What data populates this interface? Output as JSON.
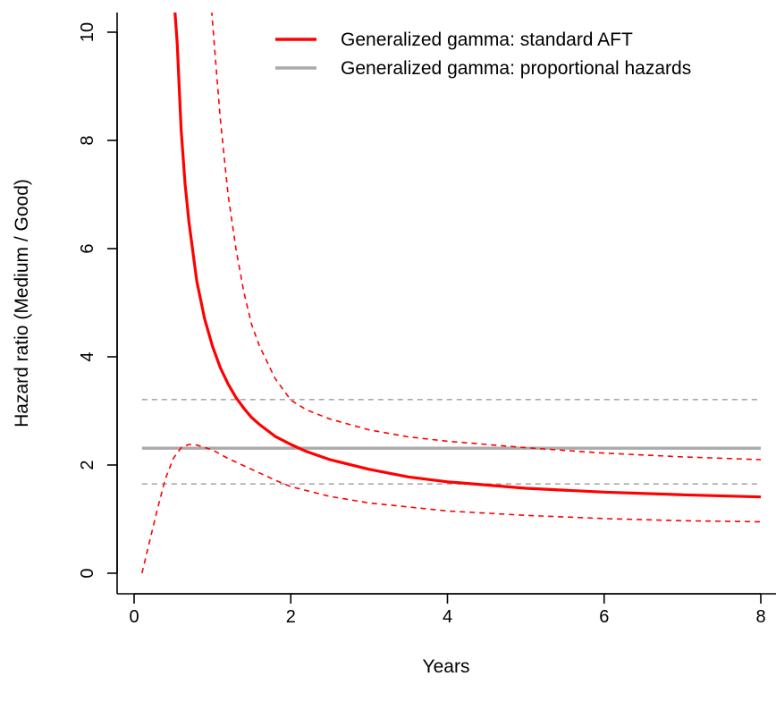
{
  "chart_data": {
    "type": "line",
    "title": "",
    "xlabel": "Years",
    "ylabel": "Hazard ratio (Medium / Good)",
    "xlim": [
      -0.21,
      8.15
    ],
    "ylim": [
      -0.35,
      10.4
    ],
    "x_ticks": [
      0,
      2,
      4,
      6,
      8
    ],
    "y_ticks": [
      0,
      2,
      4,
      6,
      8,
      10
    ],
    "x_tick_labels": [
      "0",
      "2",
      "4",
      "6",
      "8"
    ],
    "y_tick_labels": [
      "0",
      "2",
      "4",
      "6",
      "8",
      "10"
    ],
    "grid": false,
    "legend_position": "top-right",
    "legend": [
      {
        "label": "Generalized gamma: standard AFT",
        "color": "#ff0000"
      },
      {
        "label": "Generalized gamma: proportional hazards",
        "color": "#aaaaaa"
      }
    ],
    "series": [
      {
        "name": "Generalized gamma: standard AFT",
        "role": "estimate",
        "color": "#ff0000",
        "style": "solid",
        "x": [
          0.52,
          0.55,
          0.6,
          0.65,
          0.7,
          0.8,
          0.9,
          1.0,
          1.1,
          1.2,
          1.3,
          1.4,
          1.5,
          1.6,
          1.8,
          2.0,
          2.2,
          2.5,
          3.0,
          3.5,
          4.0,
          5.0,
          6.0,
          7.0,
          8.0
        ],
        "y": [
          10.4,
          9.8,
          8.2,
          7.2,
          6.5,
          5.4,
          4.7,
          4.2,
          3.8,
          3.5,
          3.25,
          3.05,
          2.88,
          2.75,
          2.53,
          2.38,
          2.25,
          2.1,
          1.92,
          1.78,
          1.69,
          1.57,
          1.5,
          1.45,
          1.41
        ]
      },
      {
        "name": "",
        "role": "standard AFT upper CI",
        "color": "#ff0000",
        "style": "dashed",
        "x": [
          0.99,
          1.05,
          1.1,
          1.2,
          1.3,
          1.4,
          1.5,
          1.6,
          1.8,
          2.0,
          2.2,
          2.5,
          3.0,
          3.5,
          4.0,
          5.0,
          6.0,
          7.0,
          8.0
        ],
        "y": [
          10.4,
          9.3,
          8.4,
          7.0,
          6.0,
          5.2,
          4.6,
          4.2,
          3.6,
          3.2,
          3.02,
          2.85,
          2.65,
          2.52,
          2.44,
          2.32,
          2.22,
          2.15,
          2.1
        ]
      },
      {
        "name": "",
        "role": "standard AFT lower CI",
        "color": "#ff0000",
        "style": "dashed",
        "x": [
          0.1,
          0.2,
          0.3,
          0.4,
          0.5,
          0.6,
          0.7,
          0.8,
          1.0,
          1.2,
          1.5,
          1.8,
          2.0,
          2.5,
          3.0,
          4.0,
          5.0,
          6.0,
          7.0,
          8.0
        ],
        "y": [
          0.0,
          0.6,
          1.2,
          1.75,
          2.12,
          2.32,
          2.38,
          2.37,
          2.28,
          2.12,
          1.92,
          1.72,
          1.6,
          1.42,
          1.3,
          1.15,
          1.07,
          1.01,
          0.97,
          0.95
        ]
      },
      {
        "name": "Generalized gamma: proportional hazards",
        "role": "estimate",
        "color": "#aaaaaa",
        "style": "solid",
        "x": [
          0.1,
          8.0
        ],
        "y": [
          2.31,
          2.31
        ]
      },
      {
        "name": "",
        "role": "proportional hazards upper CI",
        "color": "#aaaaaa",
        "style": "dashed",
        "x": [
          0.1,
          8.0
        ],
        "y": [
          3.21,
          3.21
        ]
      },
      {
        "name": "",
        "role": "proportional hazards lower CI",
        "color": "#aaaaaa",
        "style": "dashed",
        "x": [
          0.1,
          8.0
        ],
        "y": [
          1.65,
          1.65
        ]
      }
    ]
  }
}
